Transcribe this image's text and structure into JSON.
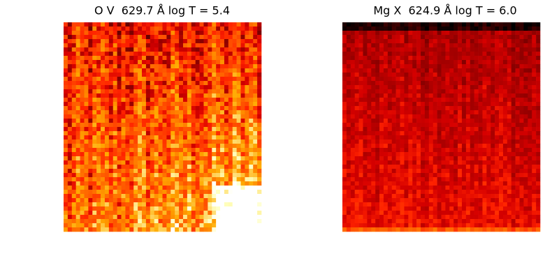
{
  "panels": [
    {
      "title": "O V  629.7 Å log T = 5.4"
    },
    {
      "title": "Mg X  624.9 Å log T = 6.0"
    }
  ]
}
